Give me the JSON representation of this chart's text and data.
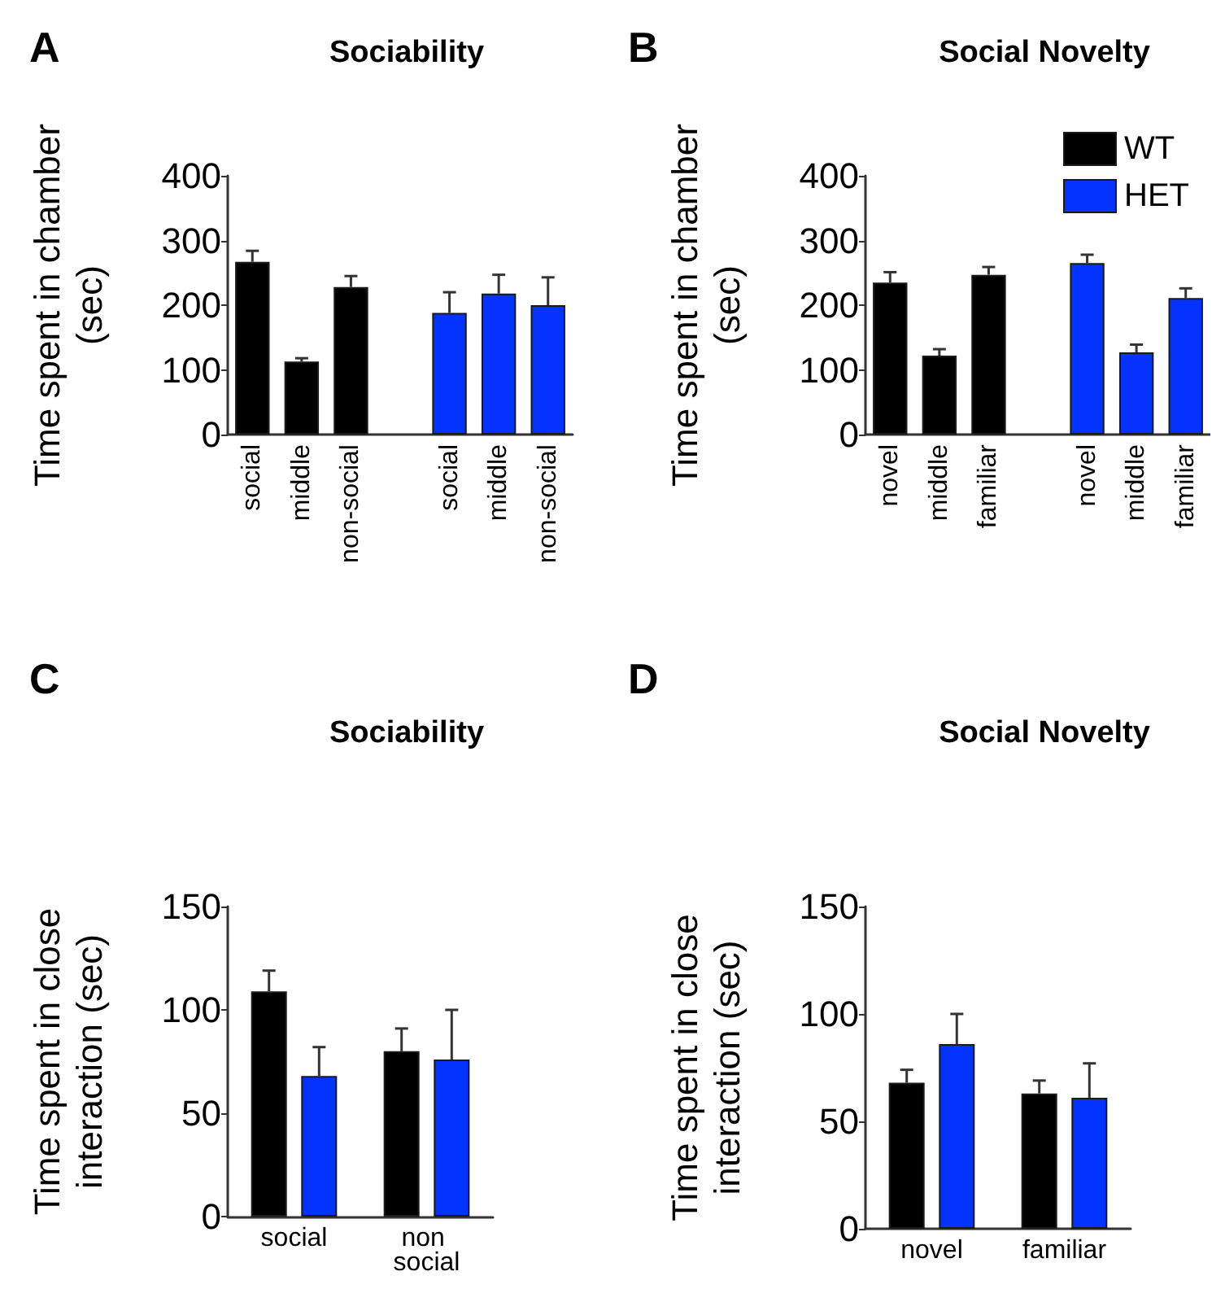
{
  "chart_data": [
    {
      "type": "bar",
      "title": "Sociability",
      "annotations": [
        "A"
      ],
      "ylabel": "Time spent in chamber (sec)",
      "categories": [
        "social",
        "middle",
        "non-social",
        null,
        "social",
        "middle",
        "non-social"
      ],
      "ylim": [
        0,
        400
      ],
      "yticks": [
        0,
        100,
        200,
        300,
        400
      ],
      "grid": false,
      "legend": false,
      "series": [
        {
          "color": "#000000",
          "values": [
            267,
            113,
            228,
            null,
            null,
            null,
            null
          ],
          "errors": [
            [
              267,
              284
            ],
            [
              113,
              118
            ],
            [
              228,
              245
            ],
            null,
            null,
            null,
            null
          ]
        },
        {
          "color": "#0433ff",
          "values": [
            null,
            null,
            null,
            null,
            188,
            218,
            200
          ],
          "errors": [
            null,
            null,
            null,
            null,
            [
              188,
              220
            ],
            [
              218,
              247
            ],
            [
              200,
              243
            ]
          ]
        }
      ]
    },
    {
      "type": "bar",
      "title": "Social Novelty",
      "annotations": [
        "B"
      ],
      "ylabel": "Time spent in chamber (sec)",
      "categories": [
        "novel",
        "middle",
        "familiar",
        null,
        "novel",
        "middle",
        "familiar"
      ],
      "ylim": [
        0,
        400
      ],
      "yticks": [
        0,
        100,
        200,
        300,
        400
      ],
      "grid": false,
      "legend": "top right",
      "series": [
        {
          "name": "WT",
          "color": "#000000",
          "values": [
            235,
            122,
            247,
            null,
            null,
            null,
            null
          ],
          "errors": [
            [
              235,
              251
            ],
            [
              122,
              132
            ],
            [
              247,
              259
            ],
            null,
            null,
            null,
            null
          ]
        },
        {
          "name": "HET",
          "color": "#0433ff",
          "values": [
            null,
            null,
            null,
            null,
            265,
            127,
            211
          ],
          "errors": [
            null,
            null,
            null,
            null,
            [
              265,
              278
            ],
            [
              127,
              139
            ],
            [
              211,
              226
            ]
          ]
        }
      ]
    },
    {
      "type": "bar",
      "title": "Sociability",
      "annotations": [
        "C"
      ],
      "ylabel": "Time spent in close interaction (sec)",
      "categories": [
        "social",
        "non social"
      ],
      "ylim": [
        0,
        150
      ],
      "yticks": [
        0,
        50,
        100,
        150
      ],
      "grid": false,
      "legend": false,
      "series": [
        {
          "color": "#000000",
          "values": [
            109,
            80
          ],
          "errors": [
            [
              109,
              119
            ],
            [
              80,
              91
            ]
          ]
        },
        {
          "color": "#0433ff",
          "values": [
            68,
            76
          ],
          "errors": [
            [
              68,
              82
            ],
            [
              76,
              100
            ]
          ]
        }
      ]
    },
    {
      "type": "bar",
      "title": "Social Novelty",
      "annotations": [
        "D"
      ],
      "ylabel": "Time spent in close interaction (sec)",
      "categories": [
        "novel",
        "familiar"
      ],
      "ylim": [
        0,
        150
      ],
      "yticks": [
        0,
        50,
        100,
        150
      ],
      "grid": false,
      "legend": false,
      "series": [
        {
          "color": "#000000",
          "values": [
            68,
            63
          ],
          "errors": [
            [
              68,
              74
            ],
            [
              63,
              69
            ]
          ]
        },
        {
          "color": "#0433ff",
          "values": [
            86,
            61
          ],
          "errors": [
            [
              86,
              100
            ],
            [
              61,
              77
            ]
          ]
        }
      ]
    }
  ]
}
